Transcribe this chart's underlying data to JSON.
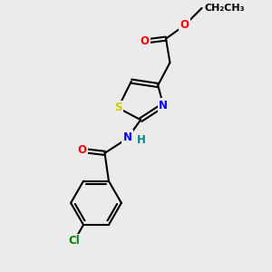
{
  "bg_color": "#ebebeb",
  "bond_color": "#000000",
  "bond_width": 1.5,
  "atom_colors": {
    "O": "#ff0000",
    "N": "#0000ff",
    "S": "#cccc00",
    "Cl": "#008800",
    "C": "#000000",
    "H": "#008888"
  },
  "font_size": 8.5,
  "atom_bg_color": "#ebebeb"
}
